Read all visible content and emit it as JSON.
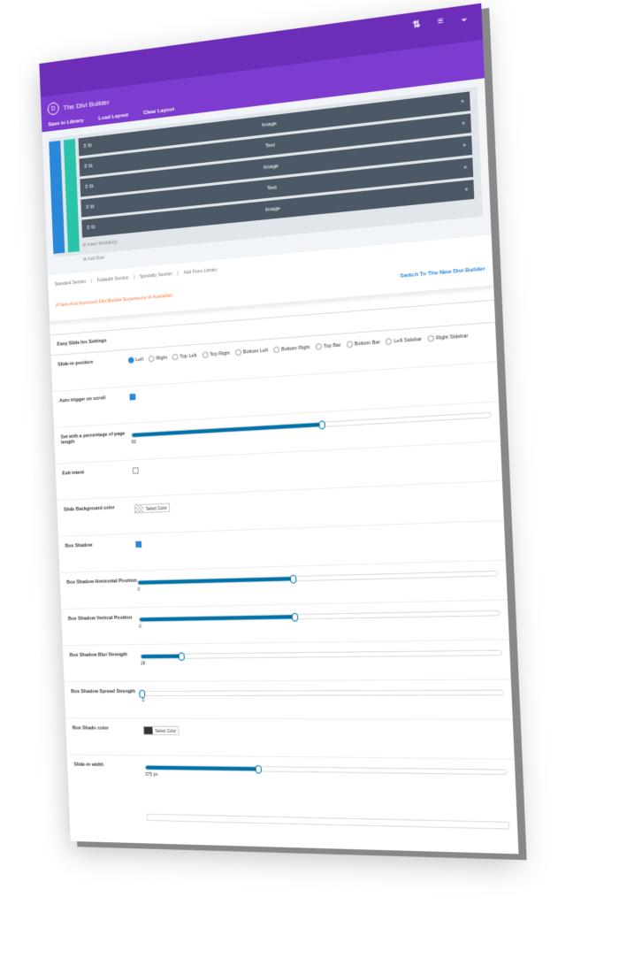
{
  "builder": {
    "title": "The Divi Builder",
    "tabs": [
      "Save to Library",
      "Load Layout",
      "Clear Layout"
    ],
    "modules": [
      "Image",
      "Text",
      "Image",
      "Text",
      "Image"
    ],
    "insert_module": "Insert Module(s)",
    "add_row": "Add Row",
    "section_links": [
      "Standard Section",
      "Fullwidth Section",
      "Specialty Section",
      "Add From Library"
    ]
  },
  "notice": {
    "text": "A New And Improved Divi Builder Experience Is Available!",
    "link": "Switch To The New Divi Builder"
  },
  "settings": {
    "title": "Easy Slide Ins Settings",
    "position": {
      "label": "Slide-in position",
      "options": [
        "Left",
        "Right",
        "Top Left",
        "Top Right",
        "Bottom Left",
        "Bottom Right",
        "Top Bar",
        "Bottom Bar",
        "Left Sidebar",
        "Right Sidebar"
      ]
    },
    "auto_trigger": {
      "label": "Auto trigger on scroll"
    },
    "percentage": {
      "label": "Set with a percentage of page length",
      "value": 60
    },
    "exit_intent": {
      "label": "Exit intent"
    },
    "bg_color": {
      "label": "Slide Background color",
      "button": "Select Color"
    },
    "box_shadow": {
      "label": "Box Shadow"
    },
    "shadow_h": {
      "label": "Box Shadow Horizontal Position",
      "value": 0
    },
    "shadow_v": {
      "label": "Box Shadow Vertical Position",
      "value": 0
    },
    "shadow_blur": {
      "label": "Box Shadow Blur Strength",
      "value": 18
    },
    "shadow_spread": {
      "label": "Box Shadow Spread Strength",
      "value": 0
    },
    "shadow_color": {
      "label": "Box Shado color",
      "button": "Select Color"
    },
    "width": {
      "label": "Slide-in width",
      "value": "375 px"
    }
  }
}
